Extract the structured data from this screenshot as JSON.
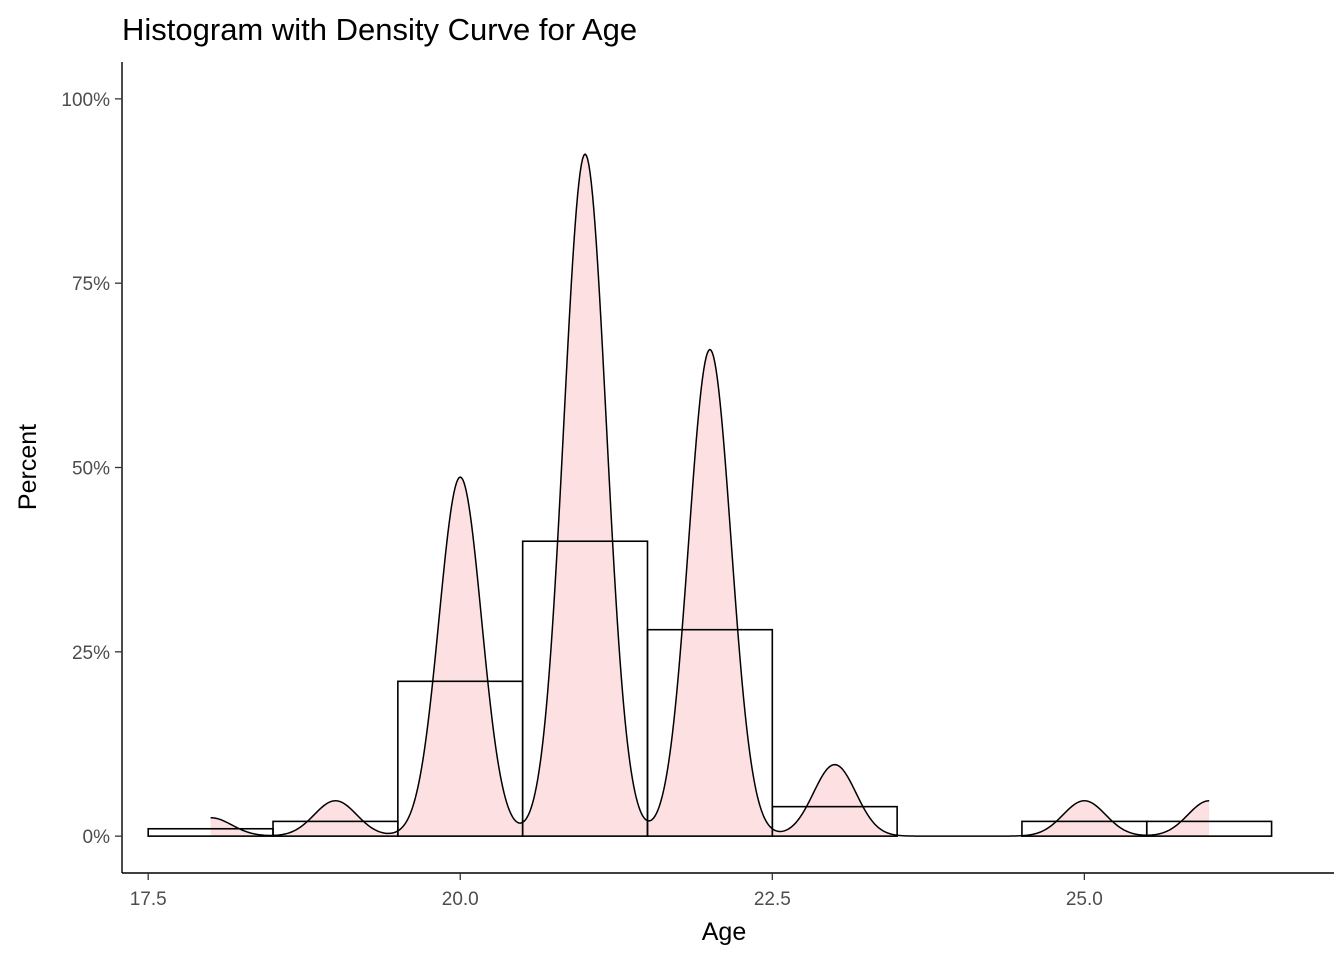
{
  "chart_data": {
    "type": "bar",
    "title": "Histogram with Density Curve for Age",
    "xlabel": "Age",
    "ylabel": "Percent",
    "xlim": [
      17.29,
      27.0
    ],
    "ylim": [
      -0.05,
      1.05
    ],
    "x_ticks": [
      17.5,
      20.0,
      22.5,
      25.0
    ],
    "x_tick_labels": [
      "17.5",
      "20.0",
      "22.5",
      "25.0"
    ],
    "y_ticks": [
      0,
      0.25,
      0.5,
      0.75,
      1.0
    ],
    "y_tick_labels": [
      "0%",
      "25%",
      "50%",
      "75%",
      "100%"
    ],
    "grid": false,
    "histogram": {
      "bin_width": 1,
      "bins": [
        {
          "x0": 17.5,
          "x1": 18.5,
          "value": 0.01
        },
        {
          "x0": 18.5,
          "x1": 19.5,
          "value": 0.02
        },
        {
          "x0": 19.5,
          "x1": 20.5,
          "value": 0.21
        },
        {
          "x0": 20.5,
          "x1": 21.5,
          "value": 0.4
        },
        {
          "x0": 21.5,
          "x1": 22.5,
          "value": 0.28
        },
        {
          "x0": 22.5,
          "x1": 23.5,
          "value": 0.04
        },
        {
          "x0": 23.5,
          "x1": 24.5,
          "value": 0.0
        },
        {
          "x0": 24.5,
          "x1": 25.5,
          "value": 0.02
        },
        {
          "x0": 25.5,
          "x1": 26.5,
          "value": 0.02
        }
      ],
      "fill": "#ffffff",
      "stroke": "#000000"
    },
    "density": {
      "x_range": [
        18.0,
        26.0
      ],
      "peaks": [
        {
          "x": 18,
          "height": 0.025
        },
        {
          "x": 19,
          "height": 0.048
        },
        {
          "x": 20,
          "height": 0.487
        },
        {
          "x": 21,
          "height": 0.925
        },
        {
          "x": 22,
          "height": 0.66
        },
        {
          "x": 23,
          "height": 0.097
        },
        {
          "x": 25,
          "height": 0.048
        },
        {
          "x": 26,
          "height": 0.048
        }
      ],
      "fill": "#fce0e2",
      "stroke": "#000000"
    }
  }
}
